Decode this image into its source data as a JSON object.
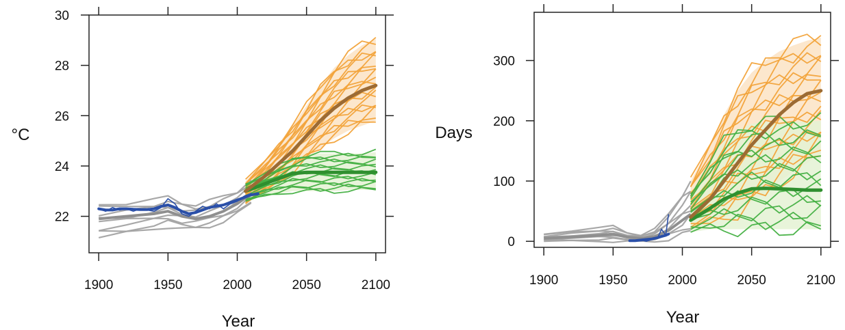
{
  "colors": {
    "historical_model": "#a3a3a3",
    "observations": "#2a4fa8",
    "high_scenario": "#f2a33a",
    "high_scenario_mean": "#9c6b34",
    "low_scenario": "#45b043",
    "low_scenario_mean": "#2f8f2f",
    "high_band_fill": "#fbe3c4",
    "low_band_fill": "#e4f2d4",
    "frame": "#222222"
  },
  "chart_data": [
    {
      "type": "line",
      "title": "",
      "xlabel": "Year",
      "ylabel": "°C",
      "xlim": [
        1893,
        2107
      ],
      "ylim": [
        20.55,
        30.0
      ],
      "x_ticks": [
        1900,
        1950,
        2000,
        2050,
        2100
      ],
      "x_tick_labels": [
        "1900",
        "1950",
        "2000",
        "2050",
        "2100"
      ],
      "y_ticks": [
        22,
        24,
        26,
        28,
        30
      ],
      "y_tick_labels": [
        "22",
        "24",
        "26",
        "28",
        "30"
      ],
      "grid": false,
      "series": [
        {
          "role": "historical_model_runs",
          "x": [
            1900,
            1920,
            1940,
            1950,
            1960,
            1970,
            1980,
            1990,
            2000,
            2010
          ],
          "values": [
            21.9,
            22.0,
            22.1,
            22.2,
            22.0,
            21.9,
            22.0,
            22.2,
            22.5,
            22.9
          ],
          "min": [
            21.15,
            21.3,
            21.5,
            21.6,
            21.5,
            21.5,
            21.6,
            21.8,
            22.1,
            22.5
          ],
          "max": [
            22.5,
            22.55,
            22.65,
            22.75,
            22.55,
            22.45,
            22.6,
            22.8,
            23.0,
            23.45
          ]
        },
        {
          "role": "observations",
          "x": [
            1900,
            1905,
            1910,
            1915,
            1920,
            1925,
            1930,
            1935,
            1940,
            1945,
            1950,
            1955,
            1960,
            1965,
            1970,
            1975,
            1980,
            1985,
            1990,
            1995,
            2000,
            2005,
            2010,
            2015
          ],
          "values": [
            22.3,
            22.2,
            22.35,
            22.25,
            22.3,
            22.2,
            22.3,
            22.25,
            22.2,
            22.35,
            22.7,
            22.5,
            22.1,
            22.0,
            22.2,
            22.4,
            22.3,
            22.5,
            22.3,
            22.5,
            22.6,
            22.8,
            22.9,
            22.85
          ],
          "smooth": [
            22.3,
            22.25,
            22.25,
            22.3,
            22.3,
            22.28,
            22.27,
            22.27,
            22.3,
            22.4,
            22.45,
            22.35,
            22.2,
            22.1,
            22.15,
            22.25,
            22.35,
            22.4,
            22.45,
            22.55,
            22.65,
            22.75,
            22.85,
            22.9
          ]
        },
        {
          "role": "high_scenario_runs",
          "x": [
            2006,
            2020,
            2030,
            2040,
            2050,
            2060,
            2070,
            2080,
            2090,
            2100
          ],
          "values": [
            23.0,
            23.6,
            24.1,
            24.6,
            25.2,
            25.8,
            26.3,
            26.7,
            27.0,
            27.2
          ],
          "min": [
            22.5,
            23.0,
            23.4,
            23.8,
            24.3,
            24.7,
            25.1,
            25.4,
            25.6,
            25.8
          ],
          "max": [
            23.4,
            24.2,
            24.9,
            25.6,
            26.4,
            27.2,
            27.9,
            28.4,
            28.8,
            29.05
          ]
        },
        {
          "role": "low_scenario_runs",
          "x": [
            2006,
            2020,
            2030,
            2040,
            2050,
            2060,
            2070,
            2080,
            2090,
            2100
          ],
          "values": [
            23.0,
            23.3,
            23.5,
            23.7,
            23.75,
            23.75,
            23.75,
            23.75,
            23.75,
            23.75
          ],
          "min": [
            22.6,
            22.8,
            22.9,
            23.0,
            23.0,
            23.0,
            23.0,
            23.05,
            23.05,
            23.05
          ],
          "max": [
            23.3,
            23.7,
            24.0,
            24.3,
            24.45,
            24.5,
            24.5,
            24.5,
            24.5,
            24.55
          ]
        }
      ]
    },
    {
      "type": "line",
      "title": "",
      "xlabel": "Year",
      "ylabel": "Days",
      "xlim": [
        1893,
        2107
      ],
      "ylim": [
        -10,
        380
      ],
      "x_ticks": [
        1900,
        1950,
        2000,
        2050,
        2100
      ],
      "x_tick_labels": [
        "1900",
        "1950",
        "2000",
        "2050",
        "2100"
      ],
      "y_ticks": [
        0,
        100,
        200,
        300
      ],
      "y_tick_labels": [
        "0",
        "100",
        "200",
        "300"
      ],
      "grid": false,
      "series": [
        {
          "role": "historical_model_runs",
          "x": [
            1900,
            1920,
            1940,
            1950,
            1960,
            1970,
            1980,
            1990,
            2000,
            2006
          ],
          "values": [
            5,
            7,
            10,
            12,
            7,
            5,
            8,
            18,
            35,
            45
          ],
          "min": [
            0,
            0,
            0,
            0,
            0,
            0,
            0,
            3,
            10,
            15
          ],
          "max": [
            12,
            18,
            22,
            25,
            15,
            10,
            20,
            45,
            80,
            100
          ]
        },
        {
          "role": "observations",
          "x": [
            1962,
            1966,
            1970,
            1974,
            1978,
            1982,
            1985,
            1988,
            1990
          ],
          "values": [
            1,
            0,
            2,
            0,
            3,
            5,
            20,
            10,
            45
          ],
          "smooth": [
            1,
            1,
            2,
            3,
            4,
            6,
            8,
            10,
            12
          ]
        },
        {
          "role": "high_scenario_runs",
          "x": [
            2006,
            2020,
            2030,
            2040,
            2050,
            2060,
            2070,
            2080,
            2090,
            2100
          ],
          "values": [
            40,
            70,
            100,
            130,
            160,
            185,
            210,
            230,
            245,
            250
          ],
          "min": [
            20,
            30,
            40,
            50,
            65,
            80,
            100,
            115,
            130,
            145
          ],
          "max": [
            100,
            160,
            210,
            250,
            280,
            300,
            315,
            325,
            333,
            338
          ]
        },
        {
          "role": "low_scenario_runs",
          "x": [
            2006,
            2020,
            2030,
            2040,
            2050,
            2060,
            2070,
            2080,
            2090,
            2100
          ],
          "values": [
            35,
            55,
            70,
            80,
            87,
            88,
            87,
            86,
            85,
            85
          ],
          "min": [
            15,
            20,
            20,
            20,
            20,
            20,
            20,
            20,
            20,
            20
          ],
          "max": [
            80,
            130,
            165,
            185,
            195,
            198,
            198,
            198,
            199,
            200
          ]
        }
      ]
    }
  ]
}
